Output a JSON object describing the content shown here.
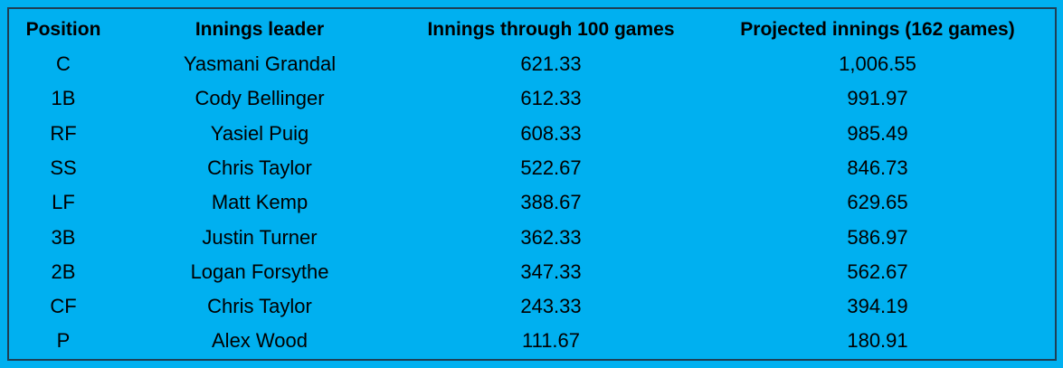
{
  "table": {
    "header": [
      "Position",
      "Innings leader",
      "Innings through 100 games",
      "Projected innings (162 games)"
    ],
    "rows": [
      [
        "C",
        "Yasmani Grandal",
        "621.33",
        "1,006.55"
      ],
      [
        "1B",
        "Cody Bellinger",
        "612.33",
        "991.97"
      ],
      [
        "RF",
        "Yasiel Puig",
        "608.33",
        "985.49"
      ],
      [
        "SS",
        "Chris Taylor",
        "522.67",
        "846.73"
      ],
      [
        "LF",
        "Matt Kemp",
        "388.67",
        "629.65"
      ],
      [
        "3B",
        "Justin Turner",
        "362.33",
        "586.97"
      ],
      [
        "2B",
        "Logan Forsythe",
        "347.33",
        "562.67"
      ],
      [
        "CF",
        "Chris Taylor",
        "243.33",
        "394.19"
      ],
      [
        "P",
        "Alex Wood",
        "111.67",
        "180.91"
      ]
    ]
  }
}
